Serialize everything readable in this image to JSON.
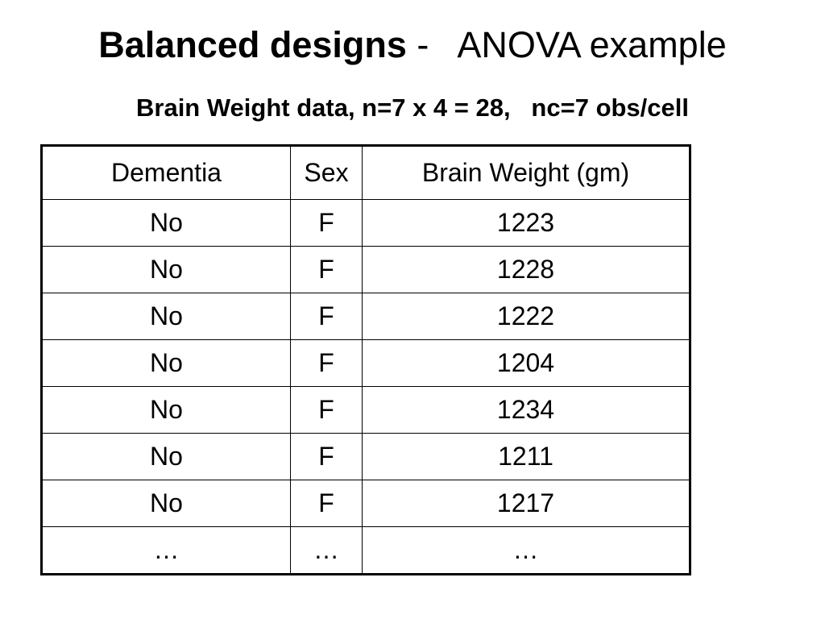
{
  "title": {
    "bold": "Balanced designs",
    "rest": " -   ANOVA example"
  },
  "subtitle": "Brain Weight data, n=7 x 4 = 28,   nc=7 obs/cell",
  "table": {
    "header": [
      "Dementia",
      "Sex",
      "Brain Weight (gm)"
    ],
    "rows": [
      [
        "No",
        "F",
        1223
      ],
      [
        "No",
        "F",
        1228
      ],
      [
        "No",
        "F",
        1222
      ],
      [
        "No",
        "F",
        1204
      ],
      [
        "No",
        "F",
        1234
      ],
      [
        "No",
        "F",
        1211
      ],
      [
        "No",
        "F",
        1217
      ],
      [
        "…",
        "…",
        "…"
      ]
    ]
  }
}
